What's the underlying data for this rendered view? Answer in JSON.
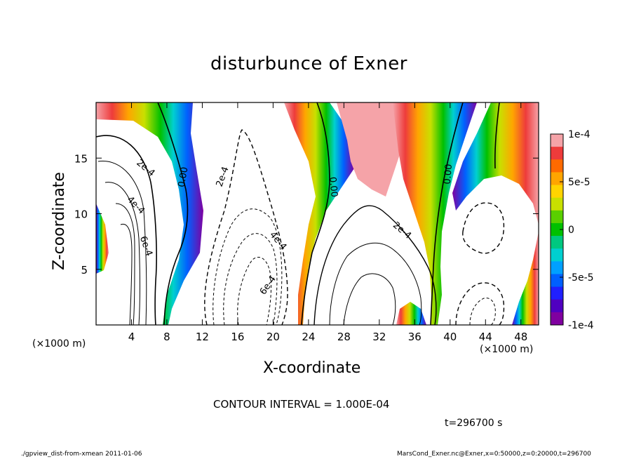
{
  "chart_data": {
    "type": "heatmap",
    "title": "disturbunce of Exner",
    "xlabel": "X-coordinate",
    "ylabel": "Z-coordinate",
    "x_unit_label": "(×1000 m)",
    "xlim": [
      0,
      50
    ],
    "ylim": [
      0,
      20
    ],
    "x_ticks": [
      4,
      8,
      12,
      16,
      20,
      24,
      28,
      32,
      36,
      40,
      44,
      48
    ],
    "y_ticks": [
      5,
      10,
      15
    ],
    "colorbar": {
      "ticks": [
        "1e-4",
        "5e-5",
        "0",
        "-5e-5",
        "-1e-4"
      ],
      "range": [
        -0.0001,
        0.0001
      ],
      "colors": [
        "#f5a3a8",
        "#ee3b3b",
        "#ff6a00",
        "#ffa500",
        "#ffd400",
        "#c8e000",
        "#5ad000",
        "#00c000",
        "#00c880",
        "#00d0d0",
        "#00a0ff",
        "#0060ff",
        "#2020ff",
        "#5000c0",
        "#8000a0"
      ]
    },
    "contour_interval_text": "CONTOUR INTERVAL = 1.000E-04",
    "contour_labels": [
      "2e-4",
      "4e-4",
      "6e-4",
      "0.00",
      "0.00",
      "0.00",
      "2e-4",
      "4e-4",
      "6e-4",
      "2e-4",
      "0.00"
    ],
    "time_text": "t=296700 s"
  },
  "footer": {
    "left": "./gpview_dist-from-xmean  2011-01-06",
    "right": "MarsCond_Exner.nc@Exner,x=0:50000,z=0:20000,t=296700"
  }
}
